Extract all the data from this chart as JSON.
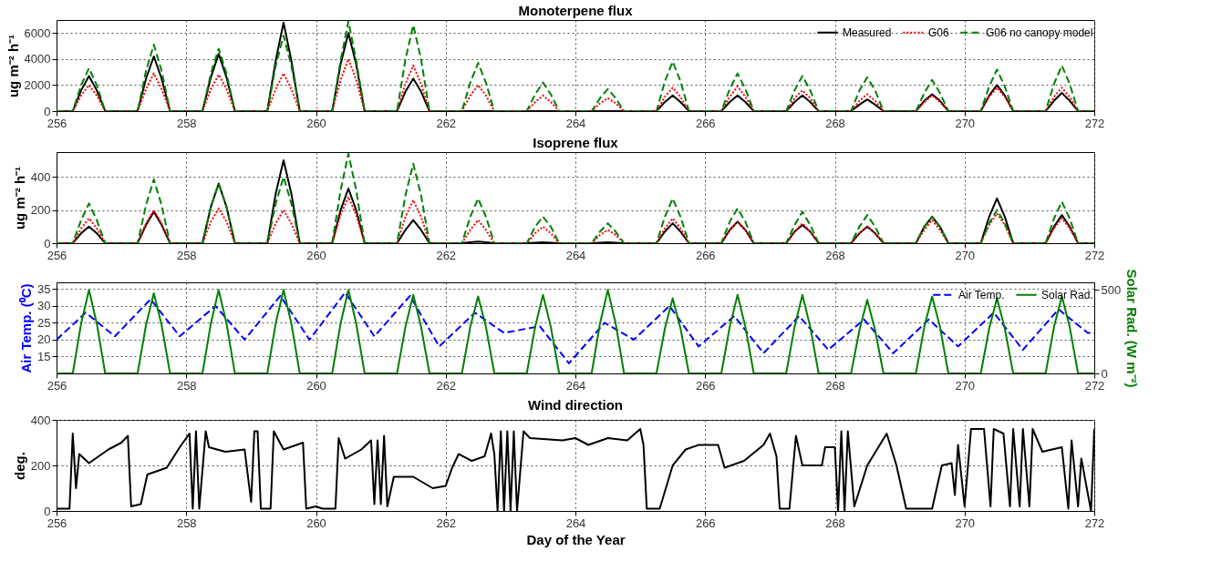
{
  "chart_data": [
    {
      "type": "line",
      "title": "Monoterpene flux",
      "ylabel": "ug m⁻² h⁻¹",
      "xlim": [
        256,
        272
      ],
      "xticks": [
        256,
        258,
        260,
        262,
        264,
        266,
        268,
        270,
        272
      ],
      "ylim": [
        0,
        7000
      ],
      "yticks": [
        0,
        2000,
        4000,
        6000
      ],
      "grid": true,
      "legend": "top right",
      "x": [
        256,
        256.25,
        256.38,
        256.5,
        256.62,
        256.75,
        257.25,
        257.38,
        257.5,
        257.62,
        257.75,
        258.25,
        258.38,
        258.5,
        258.62,
        258.75,
        259.25,
        259.38,
        259.5,
        259.62,
        259.75,
        260.25,
        260.38,
        260.5,
        260.62,
        260.75,
        261.25,
        261.38,
        261.5,
        261.62,
        261.75,
        262.25,
        262.38,
        262.5,
        262.62,
        262.75,
        263.25,
        263.38,
        263.5,
        263.62,
        263.75,
        264.25,
        264.38,
        264.5,
        264.62,
        264.75,
        265.25,
        265.38,
        265.5,
        265.62,
        265.75,
        266.25,
        266.38,
        266.5,
        266.62,
        266.75,
        267.25,
        267.38,
        267.5,
        267.62,
        267.75,
        268.25,
        268.38,
        268.5,
        268.62,
        268.75,
        269.25,
        269.38,
        269.5,
        269.62,
        269.75,
        270.25,
        270.38,
        270.5,
        270.62,
        270.75,
        271.25,
        271.38,
        271.5,
        271.62,
        271.75,
        272
      ],
      "series": [
        {
          "name": "Measured",
          "color": "#000000",
          "line_style": "solid",
          "values": [
            0,
            0,
            1600,
            2700,
            1600,
            0,
            0,
            2500,
            4200,
            2500,
            0,
            0,
            2600,
            4400,
            2600,
            0,
            0,
            3900,
            6800,
            3900,
            0,
            0,
            3600,
            6000,
            3600,
            0,
            0,
            1500,
            2500,
            1500,
            0,
            0,
            0,
            0,
            0,
            0,
            0,
            0,
            0,
            0,
            0,
            0,
            0,
            0,
            0,
            0,
            0,
            700,
            1200,
            700,
            0,
            0,
            700,
            1200,
            700,
            0,
            0,
            700,
            1200,
            700,
            0,
            0,
            500,
            900,
            500,
            0,
            0,
            800,
            1300,
            800,
            0,
            0,
            1200,
            2000,
            1200,
            0,
            0,
            800,
            1400,
            800,
            0,
            0
          ]
        },
        {
          "name": "G06",
          "color": "#ff0000",
          "line_style": "dotted",
          "values": [
            0,
            0,
            1200,
            2000,
            1200,
            0,
            0,
            1700,
            2900,
            1700,
            0,
            0,
            1700,
            2800,
            1700,
            0,
            0,
            1700,
            2900,
            1700,
            0,
            0,
            2400,
            4000,
            2400,
            0,
            0,
            2100,
            3500,
            2100,
            0,
            0,
            1200,
            2000,
            1200,
            0,
            0,
            700,
            1200,
            700,
            0,
            0,
            600,
            1000,
            600,
            0,
            0,
            1100,
            1800,
            1100,
            0,
            0,
            1100,
            1900,
            1100,
            0,
            0,
            1000,
            1600,
            1000,
            0,
            0,
            800,
            1300,
            800,
            0,
            0,
            700,
            1200,
            700,
            0,
            0,
            1100,
            1800,
            1100,
            0,
            0,
            1100,
            1800,
            1100,
            0,
            0
          ]
        },
        {
          "name": "G06 no canopy model",
          "color": "#008000",
          "line_style": "dashed",
          "values": [
            0,
            0,
            2000,
            3300,
            2000,
            0,
            0,
            3100,
            5100,
            3100,
            0,
            0,
            2900,
            4800,
            2900,
            0,
            0,
            3500,
            5800,
            3500,
            0,
            0,
            3900,
            6900,
            3900,
            0,
            0,
            4000,
            6600,
            4000,
            0,
            0,
            2200,
            3700,
            2200,
            0,
            0,
            1300,
            2200,
            1300,
            0,
            0,
            1000,
            1700,
            1000,
            0,
            0,
            2300,
            3800,
            2300,
            0,
            0,
            1700,
            2900,
            1700,
            0,
            0,
            1600,
            2700,
            1600,
            0,
            0,
            1600,
            2600,
            1600,
            0,
            0,
            1400,
            2400,
            1400,
            0,
            0,
            1900,
            3200,
            1900,
            0,
            0,
            2100,
            3500,
            2100,
            0,
            0
          ]
        }
      ]
    },
    {
      "type": "line",
      "title": "Isoprene flux",
      "ylabel": "ug m⁻² h⁻¹",
      "xlim": [
        256,
        272
      ],
      "xticks": [
        256,
        258,
        260,
        262,
        264,
        266,
        268,
        270,
        272
      ],
      "ylim": [
        0,
        550
      ],
      "yticks": [
        0,
        200,
        400
      ],
      "grid": true,
      "x": [
        256,
        256.25,
        256.38,
        256.5,
        256.62,
        256.75,
        257.25,
        257.38,
        257.5,
        257.62,
        257.75,
        258.25,
        258.38,
        258.5,
        258.62,
        258.75,
        259.25,
        259.38,
        259.5,
        259.62,
        259.75,
        260.25,
        260.38,
        260.5,
        260.62,
        260.75,
        261.25,
        261.38,
        261.5,
        261.62,
        261.75,
        262.25,
        262.38,
        262.5,
        262.62,
        262.75,
        263.25,
        263.38,
        263.5,
        263.62,
        263.75,
        264.25,
        264.38,
        264.5,
        264.62,
        264.75,
        265.25,
        265.38,
        265.5,
        265.62,
        265.75,
        266.25,
        266.38,
        266.5,
        266.62,
        266.75,
        267.25,
        267.38,
        267.5,
        267.62,
        267.75,
        268.25,
        268.38,
        268.5,
        268.62,
        268.75,
        269.25,
        269.38,
        269.5,
        269.62,
        269.75,
        270.25,
        270.38,
        270.5,
        270.62,
        270.75,
        271.25,
        271.38,
        271.5,
        271.62,
        271.75,
        272
      ],
      "series": [
        {
          "color": "#000000",
          "line_style": "solid",
          "values": [
            0,
            0,
            60,
            100,
            60,
            0,
            0,
            110,
            190,
            110,
            0,
            0,
            220,
            360,
            220,
            0,
            0,
            300,
            500,
            300,
            0,
            0,
            200,
            330,
            200,
            0,
            0,
            80,
            140,
            80,
            0,
            0,
            6,
            10,
            6,
            0,
            0,
            3,
            5,
            3,
            0,
            0,
            3,
            5,
            3,
            0,
            0,
            70,
            120,
            70,
            0,
            0,
            80,
            130,
            80,
            0,
            0,
            70,
            110,
            70,
            0,
            0,
            60,
            100,
            60,
            0,
            0,
            100,
            160,
            100,
            0,
            0,
            160,
            270,
            160,
            0,
            0,
            100,
            170,
            100,
            0,
            0
          ]
        },
        {
          "color": "#ff0000",
          "line_style": "dotted",
          "values": [
            0,
            0,
            90,
            150,
            90,
            0,
            0,
            120,
            200,
            120,
            0,
            0,
            130,
            210,
            130,
            0,
            0,
            120,
            200,
            120,
            0,
            0,
            170,
            280,
            170,
            0,
            0,
            160,
            260,
            160,
            0,
            0,
            80,
            140,
            80,
            0,
            0,
            60,
            100,
            60,
            0,
            0,
            50,
            80,
            50,
            0,
            0,
            90,
            150,
            90,
            0,
            0,
            80,
            130,
            80,
            0,
            0,
            70,
            120,
            70,
            0,
            0,
            60,
            100,
            60,
            0,
            0,
            80,
            140,
            80,
            0,
            0,
            110,
            180,
            110,
            0,
            0,
            90,
            150,
            90,
            0,
            0
          ]
        },
        {
          "color": "#008000",
          "line_style": "dashed",
          "values": [
            0,
            0,
            140,
            240,
            140,
            0,
            0,
            230,
            385,
            230,
            0,
            0,
            220,
            360,
            220,
            0,
            0,
            240,
            400,
            240,
            0,
            0,
            320,
            540,
            320,
            0,
            0,
            290,
            480,
            290,
            0,
            0,
            160,
            270,
            160,
            0,
            0,
            100,
            160,
            100,
            0,
            0,
            70,
            120,
            70,
            0,
            0,
            160,
            270,
            160,
            0,
            0,
            130,
            210,
            130,
            0,
            0,
            110,
            190,
            110,
            0,
            0,
            100,
            170,
            100,
            0,
            0,
            100,
            160,
            100,
            0,
            0,
            120,
            200,
            120,
            0,
            0,
            150,
            250,
            150,
            0,
            0
          ]
        }
      ]
    },
    {
      "type": "line",
      "ylabel": "Air Temp. (⁰C)",
      "y2label": "Solar Rad. (W m⁻²)",
      "xlim": [
        256,
        272
      ],
      "xticks": [
        256,
        258,
        260,
        262,
        264,
        266,
        268,
        270,
        272
      ],
      "ylim": [
        10,
        37
      ],
      "yticks": [
        15,
        20,
        25,
        30,
        35
      ],
      "y2lim": [
        0,
        545
      ],
      "y2ticks": [
        0,
        500
      ],
      "grid": true,
      "legend": "top right",
      "series": [
        {
          "name": "Air Temp.",
          "color": "#0000ff",
          "line_style": "dashed",
          "x": [
            256,
            256.45,
            256.9,
            257.45,
            257.9,
            258.45,
            258.9,
            259.45,
            259.9,
            260.45,
            260.9,
            261.45,
            261.9,
            262.45,
            262.9,
            263.45,
            263.9,
            264.45,
            264.9,
            265.45,
            265.9,
            266.45,
            266.9,
            267.45,
            267.9,
            268.45,
            268.9,
            269.45,
            269.9,
            270.45,
            270.9,
            271.45,
            271.9,
            272
          ],
          "values": [
            20,
            28,
            21,
            32,
            21,
            30,
            20,
            33,
            20,
            34,
            21,
            33,
            18,
            28,
            22,
            24,
            13,
            25,
            20,
            30,
            18,
            27,
            16,
            27,
            17,
            26,
            16,
            26,
            18,
            28,
            17,
            29,
            22,
            22
          ]
        },
        {
          "name": "Solar Rad.",
          "color": "#008000",
          "line_style": "solid",
          "axis": "y2",
          "x": [
            256,
            256.25,
            256.38,
            256.5,
            256.62,
            256.75,
            257.25,
            257.38,
            257.5,
            257.62,
            257.75,
            258.25,
            258.38,
            258.5,
            258.62,
            258.75,
            259.25,
            259.38,
            259.5,
            259.62,
            259.75,
            260.25,
            260.38,
            260.5,
            260.62,
            260.75,
            261.25,
            261.38,
            261.5,
            261.62,
            261.75,
            262.25,
            262.38,
            262.5,
            262.62,
            262.75,
            263.25,
            263.38,
            263.5,
            263.62,
            263.75,
            264.25,
            264.38,
            264.5,
            264.62,
            264.75,
            265.25,
            265.38,
            265.5,
            265.62,
            265.75,
            266.25,
            266.38,
            266.5,
            266.62,
            266.75,
            267.25,
            267.38,
            267.5,
            267.62,
            267.75,
            268.25,
            268.38,
            268.5,
            268.62,
            268.75,
            269.25,
            269.38,
            269.5,
            269.62,
            269.75,
            270.25,
            270.38,
            270.5,
            270.62,
            270.75,
            271.25,
            271.38,
            271.5,
            271.62,
            271.75,
            272
          ],
          "values": [
            0,
            0,
            300,
            500,
            300,
            0,
            0,
            290,
            480,
            290,
            0,
            0,
            300,
            500,
            300,
            0,
            0,
            300,
            500,
            300,
            0,
            0,
            300,
            500,
            300,
            0,
            0,
            280,
            470,
            280,
            0,
            0,
            280,
            460,
            280,
            0,
            0,
            280,
            470,
            280,
            0,
            0,
            300,
            500,
            300,
            0,
            0,
            270,
            450,
            270,
            0,
            0,
            280,
            470,
            280,
            0,
            0,
            280,
            470,
            280,
            0,
            0,
            260,
            440,
            260,
            0,
            0,
            280,
            460,
            280,
            0,
            0,
            270,
            450,
            270,
            0,
            0,
            280,
            460,
            280,
            0,
            0
          ]
        }
      ]
    },
    {
      "type": "line",
      "title": "Wind direction",
      "xlabel": "Day of the Year",
      "ylabel": "deg.",
      "xlim": [
        256,
        272
      ],
      "xticks": [
        256,
        258,
        260,
        262,
        264,
        266,
        268,
        270,
        272
      ],
      "ylim": [
        0,
        400
      ],
      "yticks": [
        0,
        200,
        400
      ],
      "grid": true,
      "x": [
        256,
        256.2,
        256.25,
        256.3,
        256.35,
        256.5,
        256.8,
        257.0,
        257.1,
        257.15,
        257.3,
        257.4,
        257.7,
        257.9,
        258.05,
        258.1,
        258.15,
        258.2,
        258.3,
        258.35,
        258.6,
        258.9,
        259.0,
        259.05,
        259.1,
        259.15,
        259.3,
        259.35,
        259.5,
        259.8,
        259.85,
        260.0,
        260.1,
        260.3,
        260.35,
        260.45,
        260.7,
        260.85,
        260.9,
        260.95,
        261.0,
        261.05,
        261.1,
        261.2,
        261.5,
        261.8,
        262.0,
        262.1,
        262.2,
        262.4,
        262.6,
        262.7,
        262.75,
        262.8,
        262.85,
        262.9,
        262.95,
        263.0,
        263.05,
        263.1,
        263.2,
        263.3,
        263.8,
        264.0,
        264.2,
        264.5,
        264.8,
        265.0,
        265.05,
        265.1,
        265.3,
        265.5,
        265.7,
        265.9,
        266.2,
        266.3,
        266.6,
        266.9,
        267.0,
        267.1,
        267.15,
        267.3,
        267.4,
        267.5,
        267.8,
        267.85,
        268.0,
        268.05,
        268.1,
        268.15,
        268.2,
        268.3,
        268.5,
        268.8,
        268.95,
        269.1,
        269.5,
        269.65,
        269.8,
        269.85,
        269.9,
        270.0,
        270.1,
        270.3,
        270.4,
        270.45,
        270.6,
        270.7,
        270.75,
        270.85,
        270.9,
        271.0,
        271.05,
        271.2,
        271.5,
        271.6,
        271.65,
        271.75,
        271.8,
        271.95,
        272
      ],
      "series": [
        {
          "color": "#000000",
          "line_style": "solid",
          "values": [
            10,
            10,
            340,
            100,
            250,
            210,
            270,
            300,
            330,
            20,
            30,
            160,
            190,
            280,
            340,
            10,
            350,
            10,
            350,
            280,
            260,
            270,
            40,
            350,
            350,
            10,
            10,
            350,
            270,
            300,
            10,
            20,
            10,
            10,
            320,
            230,
            270,
            310,
            30,
            310,
            30,
            330,
            20,
            150,
            150,
            100,
            110,
            190,
            250,
            220,
            240,
            340,
            250,
            0,
            350,
            0,
            350,
            0,
            350,
            0,
            350,
            320,
            310,
            320,
            290,
            320,
            310,
            360,
            290,
            10,
            10,
            200,
            270,
            290,
            290,
            190,
            220,
            290,
            340,
            240,
            10,
            10,
            330,
            200,
            200,
            280,
            280,
            0,
            350,
            0,
            350,
            20,
            200,
            340,
            200,
            10,
            10,
            200,
            210,
            70,
            290,
            20,
            360,
            360,
            20,
            360,
            340,
            20,
            360,
            20,
            360,
            20,
            360,
            260,
            280,
            10,
            310,
            20,
            230,
            0,
            360
          ]
        }
      ]
    }
  ]
}
